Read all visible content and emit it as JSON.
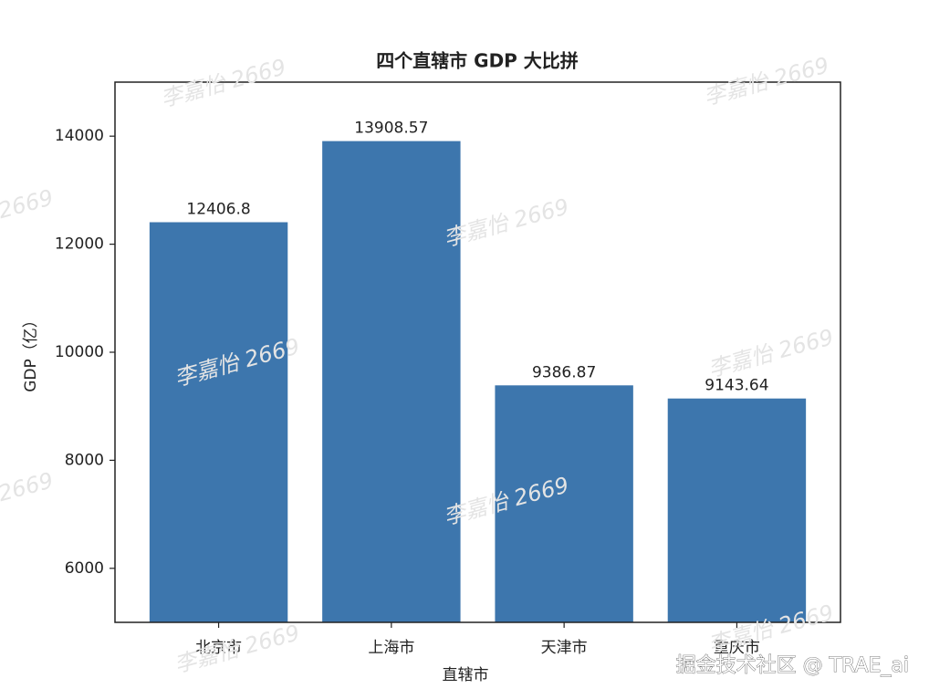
{
  "chart_data": {
    "type": "bar",
    "title": "四个直辖市 GDP 大比拼",
    "xlabel": "直辖市",
    "ylabel": "GDP（亿）",
    "categories": [
      "北京市",
      "上海市",
      "天津市",
      "重庆市"
    ],
    "values": [
      12406.8,
      13908.57,
      9386.87,
      9143.64
    ],
    "color": "#3d76ad",
    "ylim": [
      5000,
      15000
    ],
    "yticks": [
      6000,
      8000,
      10000,
      12000,
      14000
    ],
    "grid": false
  },
  "watermark": "李嘉怡 2669",
  "footer_watermark": "掘金技术社区 @ TRAE_ai"
}
